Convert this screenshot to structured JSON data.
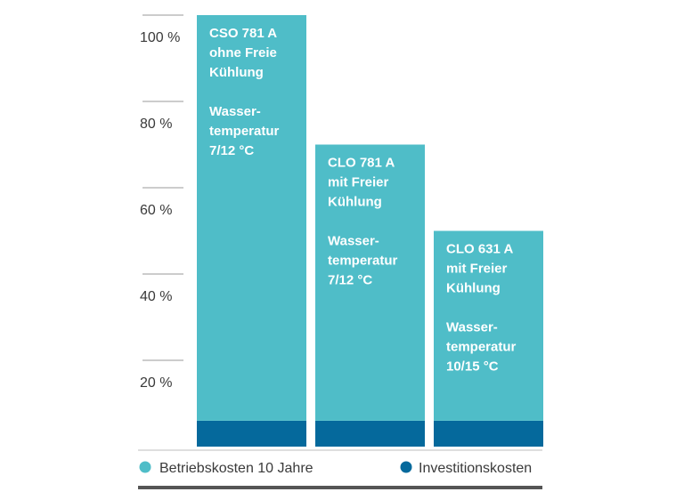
{
  "chart_data": {
    "type": "bar",
    "stacked": true,
    "categories": [
      "CSO 781 A ohne Freie Kühlung Wasser-temperatur 7/12 °C",
      "CLO 781 A mit Freier Kühlung Wasser-temperatur 7/12 °C",
      "CLO 631 A mit Freier Kühlung Wasser-temperatur 10/15 °C"
    ],
    "bar_labels": [
      [
        "CSO 781 A",
        "ohne Freie",
        "Kühlung",
        "",
        "Wasser-",
        "temperatur",
        "7/12 °C"
      ],
      [
        "CLO 781 A",
        "mit Freier",
        "Kühlung",
        "",
        "Wasser-",
        "temperatur",
        "7/12 °C"
      ],
      [
        "CLO 631 A",
        "mit Freier",
        "Kühlung",
        "",
        "Wasser-",
        "temperatur",
        "10/15 °C"
      ]
    ],
    "series": [
      {
        "name": "Investitionskosten",
        "values": [
          6,
          6,
          6
        ],
        "color": "#05699c"
      },
      {
        "name": "Betriebskosten 10 Jahre",
        "values": [
          94,
          64,
          44
        ],
        "color": "#4fbdc8"
      }
    ],
    "y_ticks": [
      20,
      40,
      60,
      80,
      100
    ],
    "y_tick_labels": [
      "20 %",
      "40 %",
      "60 %",
      "80 %",
      "100 %"
    ],
    "ylim": [
      0,
      100
    ],
    "grid": false,
    "legend_position": "bottom",
    "legend": [
      {
        "label": "Betriebskosten 10 Jahre",
        "color": "#4fbdc8"
      },
      {
        "label": "Investitionskosten",
        "color": "#05699c"
      }
    ]
  }
}
